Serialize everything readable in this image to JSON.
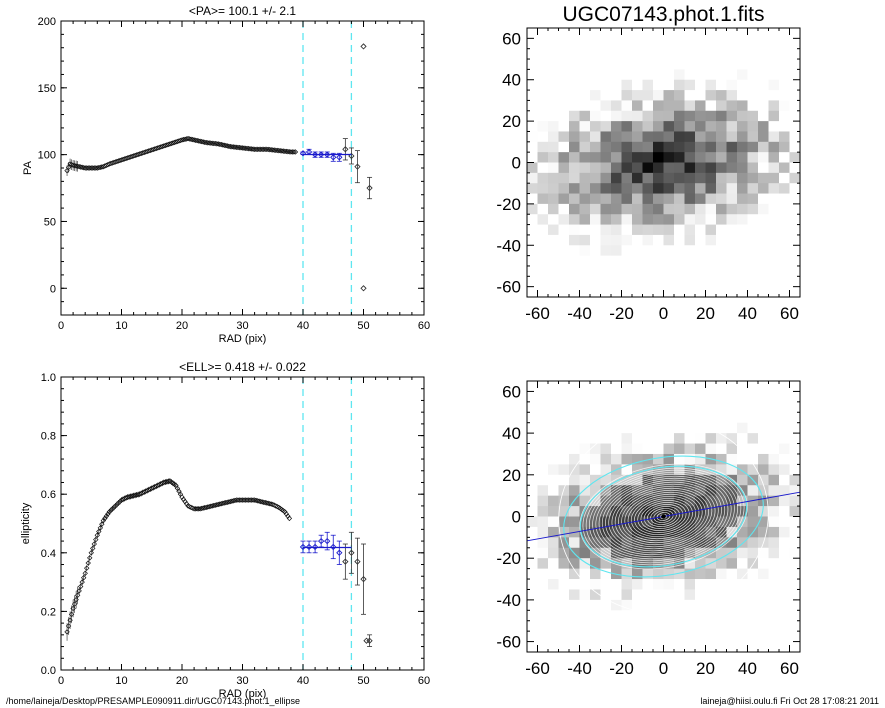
{
  "page": {
    "footer_left": "/home/laineja/Desktop/PRESAMPLE090911.dir/UGC07143.phot.1_ellipse",
    "footer_right": "laineja@hiisi.oulu.fi  Fri Oct 28 17:08:21 2011"
  },
  "colors": {
    "axis": "#000000",
    "fit_region": "#5ee6f0",
    "fit_points": "#1a1acc",
    "fit_line": "#1a1acc"
  },
  "chart_data": [
    {
      "type": "scatter",
      "title": "<PA>= 100.1 +/-   2.1",
      "xlabel": "RAD (pix)",
      "ylabel": "PA",
      "xlim": [
        0,
        60
      ],
      "ylim": [
        -20,
        200
      ],
      "xticks": [
        "0",
        "10",
        "20",
        "30",
        "40",
        "50",
        "60"
      ],
      "yticks": [
        "0",
        "50",
        "100",
        "150",
        "200"
      ],
      "ytick_values": [
        0,
        50,
        100,
        150,
        200
      ],
      "fit_region": [
        40,
        48
      ],
      "mean_value": 100.1,
      "profile": [
        [
          1,
          88
        ],
        [
          1.5,
          93
        ],
        [
          2,
          92
        ],
        [
          3,
          91
        ],
        [
          4,
          90
        ],
        [
          5,
          90
        ],
        [
          6,
          90
        ],
        [
          7,
          91
        ],
        [
          8,
          93
        ],
        [
          10,
          96
        ],
        [
          12,
          99
        ],
        [
          14,
          102
        ],
        [
          16,
          105
        ],
        [
          18,
          108
        ],
        [
          20,
          111
        ],
        [
          21,
          112
        ],
        [
          22,
          111
        ],
        [
          24,
          109
        ],
        [
          26,
          108
        ],
        [
          28,
          106
        ],
        [
          30,
          105
        ],
        [
          32,
          104
        ],
        [
          34,
          104
        ],
        [
          36,
          103
        ],
        [
          38,
          102
        ],
        [
          39,
          102
        ]
      ],
      "series": [
        {
          "name": "fit points",
          "points": [
            [
              40,
              101,
              1
            ],
            [
              41,
              102,
              2
            ],
            [
              42,
              100,
              2
            ],
            [
              43,
              100,
              2
            ],
            [
              44,
              100,
              2
            ],
            [
              45,
              98,
              3
            ],
            [
              46,
              98,
              3
            ]
          ]
        },
        {
          "name": "outer points",
          "points": [
            [
              47,
              104,
              8
            ],
            [
              48,
              99,
              6
            ],
            [
              49,
              91,
              12
            ],
            [
              51,
              75,
              8
            ],
            [
              50,
              181,
              0
            ],
            [
              50,
              0,
              0
            ]
          ]
        }
      ]
    },
    {
      "type": "scatter",
      "title": "<ELL>= 0.418 +/-  0.022",
      "xlabel": "RAD (pix)",
      "ylabel": "ellipticity",
      "xlim": [
        0,
        60
      ],
      "ylim": [
        0,
        1
      ],
      "xticks": [
        "0",
        "10",
        "20",
        "30",
        "40",
        "50",
        "60"
      ],
      "yticks": [
        "0.0",
        "0.2",
        "0.4",
        "0.6",
        "0.8",
        "1.0"
      ],
      "ytick_values": [
        0,
        0.2,
        0.4,
        0.6,
        0.8,
        1.0
      ],
      "fit_region": [
        40,
        48
      ],
      "mean_value": 0.418,
      "profile": [
        [
          1,
          0.13
        ],
        [
          1.5,
          0.17
        ],
        [
          2,
          0.21
        ],
        [
          3,
          0.27
        ],
        [
          4,
          0.33
        ],
        [
          5,
          0.4
        ],
        [
          6,
          0.46
        ],
        [
          7,
          0.51
        ],
        [
          8,
          0.54
        ],
        [
          9,
          0.56
        ],
        [
          10,
          0.58
        ],
        [
          11,
          0.59
        ],
        [
          12,
          0.595
        ],
        [
          13,
          0.6
        ],
        [
          14,
          0.61
        ],
        [
          15,
          0.62
        ],
        [
          16,
          0.63
        ],
        [
          17,
          0.64
        ],
        [
          18,
          0.645
        ],
        [
          19,
          0.63
        ],
        [
          20,
          0.59
        ],
        [
          21,
          0.56
        ],
        [
          22,
          0.55
        ],
        [
          23,
          0.55
        ],
        [
          24,
          0.555
        ],
        [
          25,
          0.56
        ],
        [
          26,
          0.565
        ],
        [
          27,
          0.57
        ],
        [
          28,
          0.575
        ],
        [
          29,
          0.58
        ],
        [
          30,
          0.58
        ],
        [
          31,
          0.58
        ],
        [
          32,
          0.58
        ],
        [
          33,
          0.575
        ],
        [
          34,
          0.57
        ],
        [
          35,
          0.565
        ],
        [
          36,
          0.555
        ],
        [
          37,
          0.54
        ],
        [
          38,
          0.51
        ]
      ],
      "series": [
        {
          "name": "fit points",
          "points": [
            [
              40,
              0.42,
              0.02
            ],
            [
              41,
              0.42,
              0.02
            ],
            [
              42,
              0.42,
              0.02
            ],
            [
              43,
              0.44,
              0.02
            ],
            [
              44,
              0.44,
              0.03
            ],
            [
              45,
              0.42,
              0.04
            ],
            [
              46,
              0.4,
              0.04
            ]
          ]
        },
        {
          "name": "outer points",
          "points": [
            [
              47,
              0.37,
              0.06
            ],
            [
              48,
              0.4,
              0.07
            ],
            [
              49,
              0.37,
              0.08
            ],
            [
              50,
              0.31,
              0.12
            ],
            [
              50.5,
              0.1,
              0
            ],
            [
              51,
              0.1,
              0.02
            ]
          ]
        }
      ]
    },
    {
      "type": "heatmap",
      "title": "UGC07143.phot.1.fits",
      "xticks": [
        "-60",
        "-40",
        "-20",
        "0",
        "20",
        "40",
        "60"
      ],
      "yticks": [
        "60",
        "40",
        "20",
        "0",
        "-20",
        "-40",
        "-60"
      ],
      "xlim": [
        -65,
        65
      ],
      "ylim": [
        -65,
        65
      ]
    },
    {
      "type": "heatmap",
      "title": "",
      "xticks": [
        "-60",
        "-40",
        "-20",
        "0",
        "20",
        "40",
        "60"
      ],
      "yticks": [
        "60",
        "40",
        "20",
        "0",
        "-20",
        "-40",
        "-60"
      ],
      "xlim": [
        -65,
        65
      ],
      "ylim": [
        -65,
        65
      ],
      "position_angle_deg": 100.1,
      "ellipticity": 0.418,
      "fit_sma": [
        40,
        48
      ]
    }
  ]
}
